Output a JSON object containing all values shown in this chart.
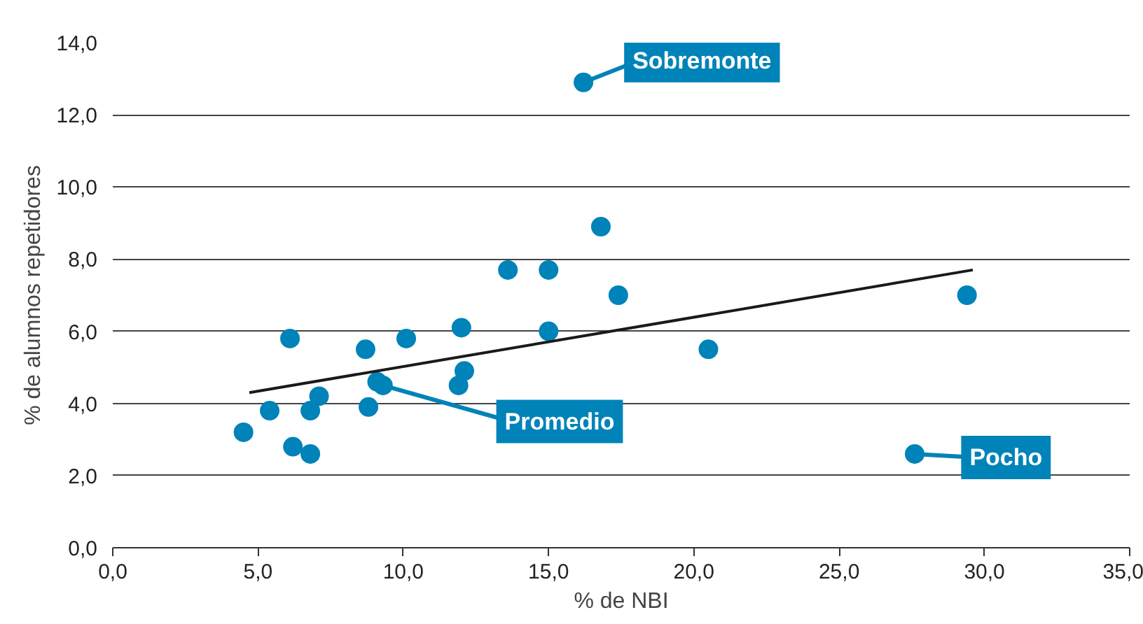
{
  "chart_data": {
    "type": "scatter",
    "xlabel": "% de NBI",
    "ylabel": "% de alumnos repetidores",
    "xlim": [
      0,
      35
    ],
    "ylim": [
      0,
      14
    ],
    "xticks": [
      {
        "value": 0,
        "label": "0,0"
      },
      {
        "value": 5,
        "label": "5,0"
      },
      {
        "value": 10,
        "label": "10,0"
      },
      {
        "value": 15,
        "label": "15,0"
      },
      {
        "value": 20,
        "label": "20,0"
      },
      {
        "value": 25,
        "label": "25,0"
      },
      {
        "value": 30,
        "label": "30,0"
      },
      {
        "value": 35,
        "label": "35,0"
      }
    ],
    "yticks": [
      {
        "value": 0,
        "label": "0,0"
      },
      {
        "value": 2,
        "label": "2,0"
      },
      {
        "value": 4,
        "label": "4,0"
      },
      {
        "value": 6,
        "label": "6,0"
      },
      {
        "value": 8,
        "label": "8,0"
      },
      {
        "value": 10,
        "label": "10,0"
      },
      {
        "value": 12,
        "label": "12,0"
      },
      {
        "value": 14,
        "label": "14,0"
      }
    ],
    "grid": "y",
    "series": [
      {
        "marker": "circle",
        "color": "#0083b8",
        "x": [
          4.5,
          5.4,
          6.2,
          6.1,
          6.8,
          6.8,
          7.1,
          8.7,
          8.8,
          9.1,
          9.3,
          10.1,
          12.0,
          12.1,
          11.9,
          13.6,
          15.0,
          15.0,
          16.8,
          17.4,
          20.5,
          16.2,
          27.6,
          29.4
        ],
        "values": [
          3.2,
          3.8,
          2.8,
          5.8,
          2.6,
          3.8,
          4.2,
          5.5,
          3.9,
          4.6,
          4.5,
          5.8,
          6.1,
          4.9,
          4.5,
          7.7,
          7.7,
          6.0,
          8.9,
          7.0,
          5.5,
          12.9,
          2.6,
          7.0
        ]
      },
      {
        "type": "line",
        "color": "#1a1a1a",
        "x": [
          4.7,
          29.6
        ],
        "values": [
          4.3,
          7.7
        ]
      }
    ],
    "annotations": [
      {
        "text": "Sobremonte",
        "x": 16.2,
        "y": 12.9
      },
      {
        "text": "Promedio",
        "x": 9.3,
        "y": 4.5
      },
      {
        "text": "Pocho",
        "x": 27.6,
        "y": 2.6
      }
    ]
  }
}
